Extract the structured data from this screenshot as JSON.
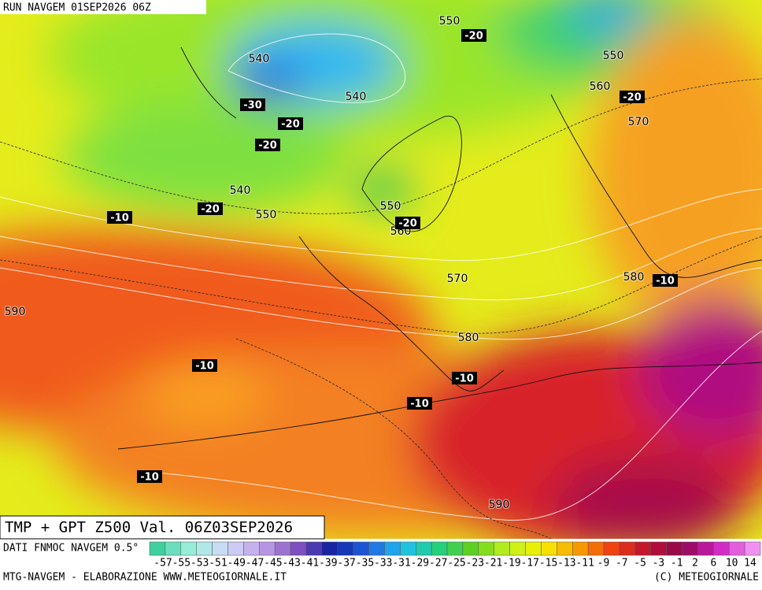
{
  "header": "RUN NAVGEM 01SEP2026 06Z",
  "map_labels": {
    "height": [
      540,
      540,
      550,
      550,
      560,
      570,
      540,
      550,
      550,
      560,
      570,
      580,
      590,
      580,
      590
    ],
    "temperature": [
      -20,
      -20,
      -30,
      -20,
      -20,
      -20,
      -10,
      -20,
      -10,
      -10,
      -10,
      -10,
      -10
    ]
  },
  "footer": {
    "title": "TMP + GPT Z500 Val. 06Z03SEP2026",
    "source": "DATI FNMOC NAVGEM 0.5°",
    "credit": "MTG-NAVGEM - ELABORAZIONE WWW.METEOGIORNALE.IT",
    "copyright": "(C) METEOGIORNALE"
  },
  "scale": {
    "labels": [
      -57,
      -55,
      -53,
      -51,
      -49,
      -47,
      -45,
      -43,
      -41,
      -39,
      -37,
      -35,
      -33,
      -31,
      -29,
      -27,
      -25,
      -23,
      -21,
      -19,
      -17,
      -15,
      -13,
      -11,
      -9,
      -7,
      -5,
      -3,
      -1,
      2,
      6,
      10,
      14
    ]
  }
}
